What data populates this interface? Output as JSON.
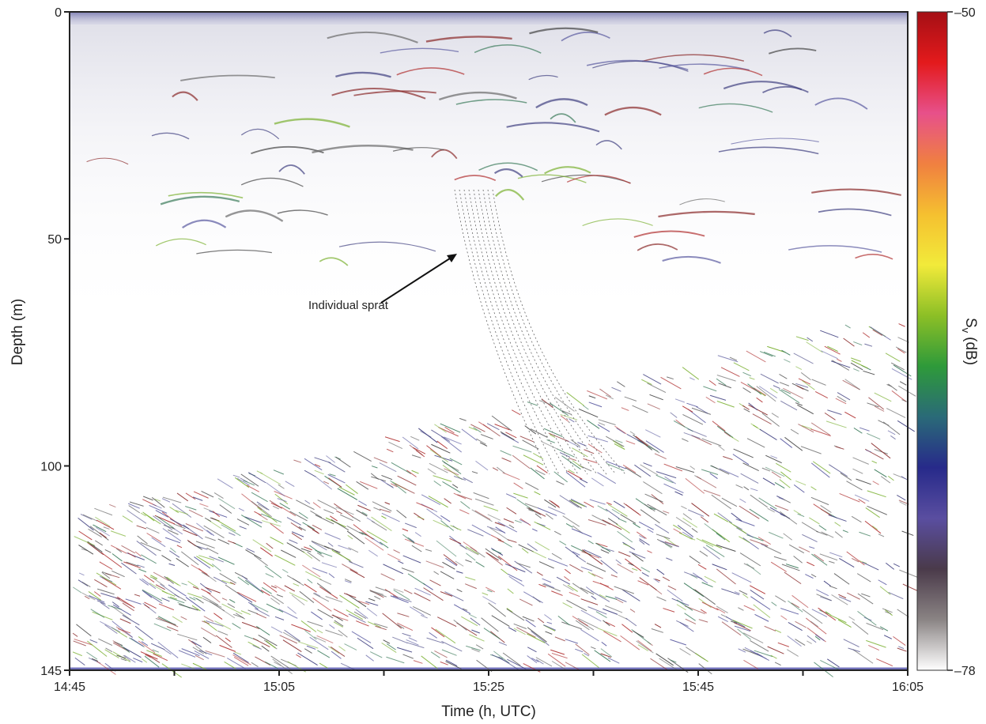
{
  "chart_data": {
    "type": "echogram",
    "x_label": "Time (h, UTC)",
    "y_label": "Depth (m)",
    "ylim": [
      0,
      145
    ],
    "yticks": [
      0,
      50,
      100,
      145
    ],
    "xticks": [
      "14:45",
      null,
      "15:05",
      null,
      "15:25",
      null,
      "15:45",
      null,
      "16:05"
    ],
    "annotation": "Individual sprat",
    "colorbar": {
      "label": {
        "main": "S",
        "sub": "v",
        "unit": "(dB)"
      },
      "clim": [
        -50,
        -78
      ],
      "ticks": [
        {
          "value": -50,
          "label": "–50"
        },
        {
          "value": -78,
          "label": "–78"
        }
      ],
      "colormap": [
        "#a50f15",
        "#e31a1c",
        "#e7508a",
        "#f08040",
        "#f5c030",
        "#f2ea3a",
        "#8cbf26",
        "#2e9a3a",
        "#2a6a78",
        "#272a8a",
        "#5a4ea0",
        "#4a3a4a",
        "#8a8484",
        "#ffffff"
      ]
    }
  }
}
